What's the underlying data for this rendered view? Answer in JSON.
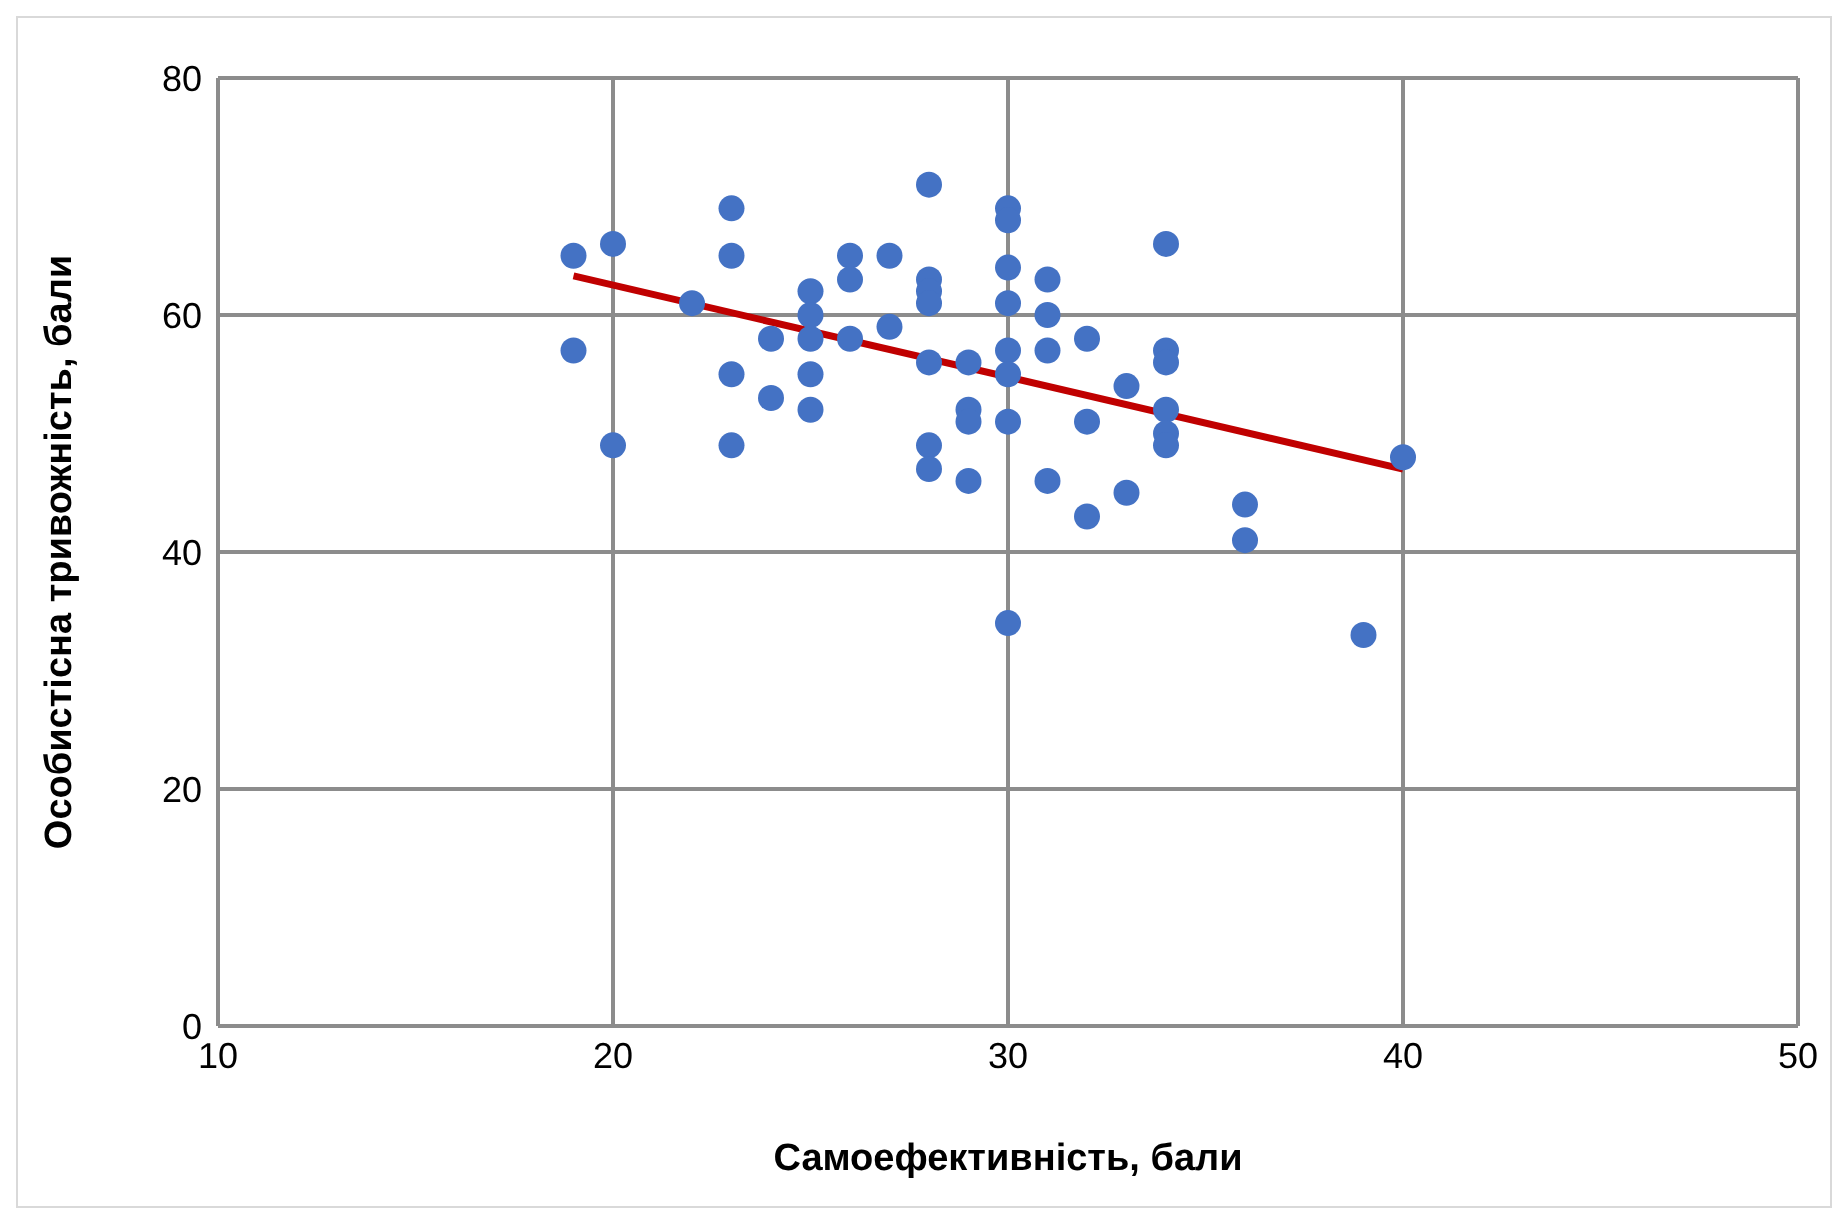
{
  "chart_data": {
    "type": "scatter",
    "xlabel": "Самоефективність, бали",
    "ylabel": "Особистісна тривожність, бали",
    "xlim": [
      10,
      50
    ],
    "xticks": [
      10,
      20,
      30,
      40,
      50
    ],
    "ylim": [
      0,
      80
    ],
    "yticks": [
      0,
      20,
      40,
      60,
      80
    ],
    "grid": true,
    "series": [
      {
        "color": "#4472c4",
        "marker": "circle",
        "x": [
          19,
          19,
          20,
          20,
          22,
          23,
          23,
          23,
          23,
          24,
          24,
          25,
          25,
          25,
          25,
          25,
          26,
          26,
          26,
          27,
          27,
          28,
          28,
          28,
          28,
          28,
          28,
          28,
          29,
          29,
          29,
          29,
          30,
          30,
          30,
          30,
          30,
          30,
          30,
          30,
          31,
          31,
          31,
          31,
          32,
          32,
          32,
          33,
          33,
          34,
          34,
          34,
          34,
          34,
          34,
          36,
          36,
          39,
          40
        ],
        "values": [
          65,
          57,
          66,
          49,
          61,
          69,
          65,
          55,
          49,
          58,
          53,
          62,
          60,
          58,
          55,
          52,
          65,
          63,
          58,
          65,
          59,
          71,
          63,
          62,
          61,
          56,
          49,
          47,
          56,
          52,
          51,
          46,
          69,
          68,
          64,
          61,
          57,
          55,
          51,
          34,
          63,
          60,
          57,
          46,
          58,
          51,
          43,
          54,
          45,
          66,
          57,
          56,
          52,
          50,
          49,
          44,
          41,
          33,
          48
        ]
      },
      {
        "type": "line",
        "color": "#c00000",
        "marker": "none",
        "line_style": "solid",
        "x": [
          19,
          40
        ],
        "values": [
          63.3,
          47
        ]
      }
    ]
  }
}
